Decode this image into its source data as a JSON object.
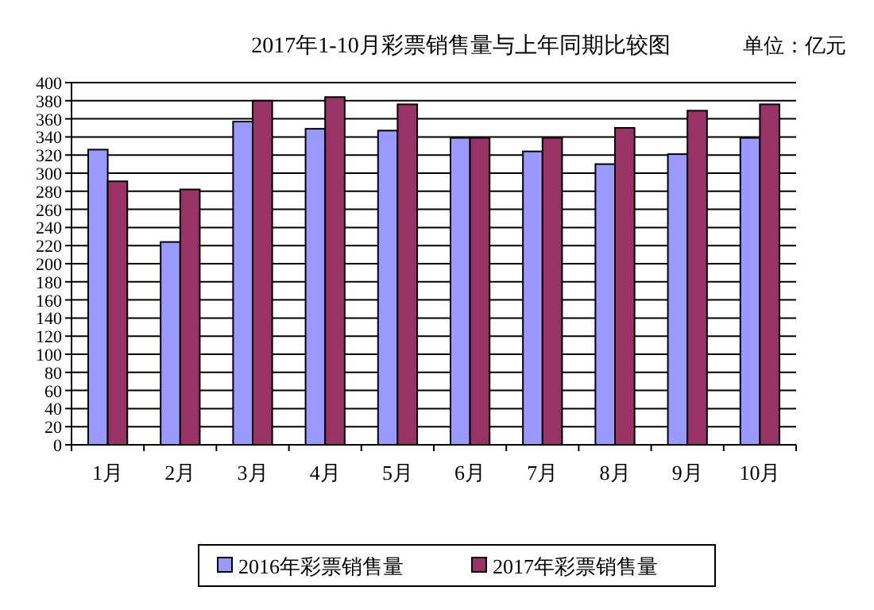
{
  "chart_data": {
    "type": "bar",
    "title": "2017年1-10月彩票销售量与上年同期比较图",
    "annotations": [
      "单位：亿元"
    ],
    "categories": [
      "1月",
      "2月",
      "3月",
      "4月",
      "5月",
      "6月",
      "7月",
      "8月",
      "9月",
      "10月"
    ],
    "series": [
      {
        "name": "2016年彩票销售量",
        "color": "#9999ff",
        "values": [
          326,
          224,
          357,
          349,
          347,
          339,
          324,
          310,
          321,
          339
        ]
      },
      {
        "name": "2017年彩票销售量",
        "color": "#993366",
        "values": [
          291,
          282,
          380,
          384,
          376,
          339,
          339,
          350,
          369,
          376
        ]
      }
    ],
    "ylim": [
      0,
      400
    ],
    "yticks": [
      0,
      20,
      40,
      60,
      80,
      100,
      120,
      140,
      160,
      180,
      200,
      220,
      240,
      260,
      280,
      300,
      320,
      340,
      360,
      380,
      400
    ],
    "grid": "y",
    "legend": "bottom"
  }
}
